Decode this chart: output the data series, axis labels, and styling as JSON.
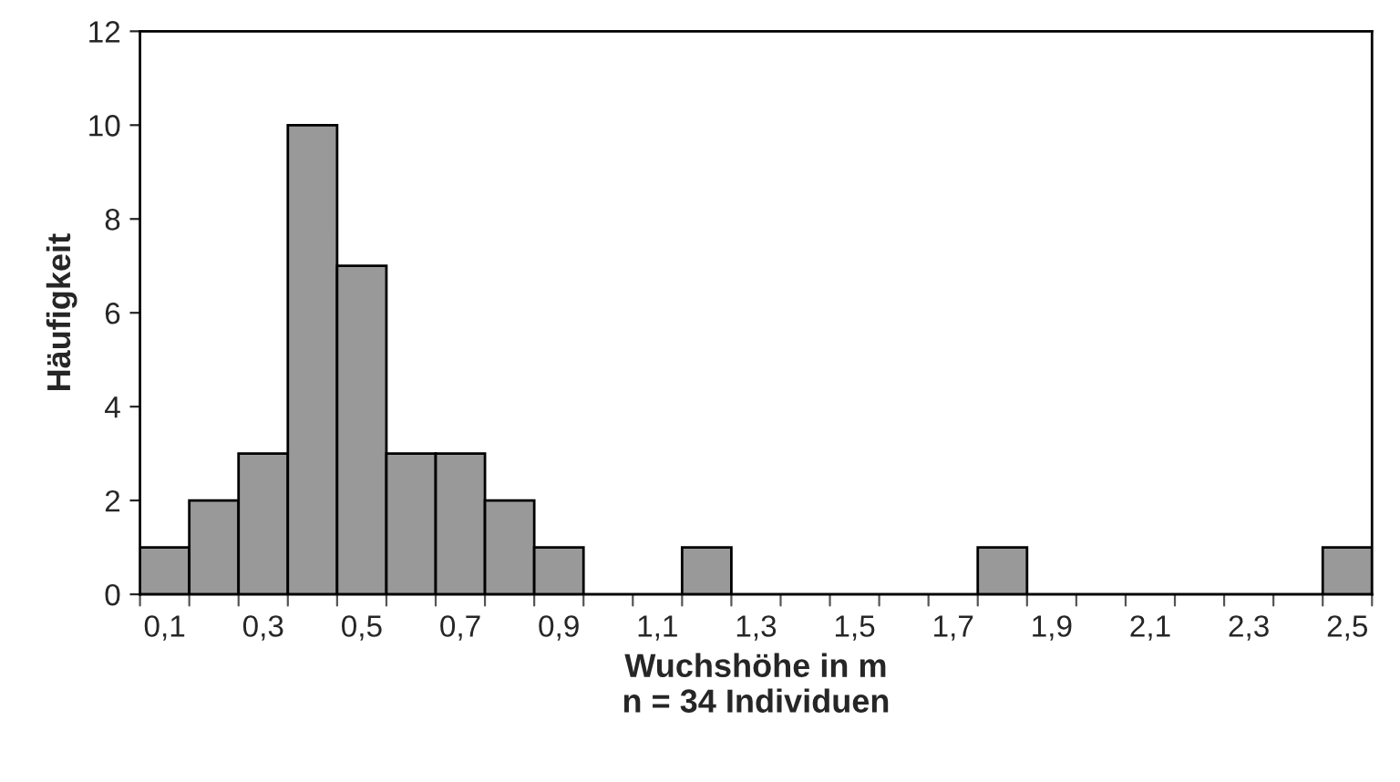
{
  "chart_data": {
    "type": "histogram",
    "xlabel": "Wuchshöhe in m\nn = 34 Individuen",
    "ylabel": "Häufigkeit",
    "bins": [
      0.05,
      0.15,
      0.25,
      0.35,
      0.45,
      0.55,
      0.65,
      0.75,
      0.85,
      0.95,
      1.05,
      1.15,
      1.25,
      1.35,
      1.45,
      1.55,
      1.65,
      1.75,
      1.85,
      1.95,
      2.05,
      2.15,
      2.25,
      2.35,
      2.45,
      2.55
    ],
    "values": [
      1,
      2,
      3,
      10,
      7,
      3,
      3,
      2,
      1,
      0,
      0,
      1,
      0,
      0,
      0,
      0,
      0,
      1,
      0,
      0,
      0,
      0,
      0,
      0,
      1
    ],
    "color": "#999999",
    "xlim": [
      0.05,
      2.55
    ],
    "xticks": [
      {
        "value": 0.1,
        "label": "0,1"
      },
      {
        "value": 0.3,
        "label": "0,3"
      },
      {
        "value": 0.5,
        "label": "0,5"
      },
      {
        "value": 0.7,
        "label": "0,7"
      },
      {
        "value": 0.9,
        "label": "0,9"
      },
      {
        "value": 1.1,
        "label": "1,1"
      },
      {
        "value": 1.3,
        "label": "1,3"
      },
      {
        "value": 1.5,
        "label": "1,5"
      },
      {
        "value": 1.7,
        "label": "1,7"
      },
      {
        "value": 1.9,
        "label": "1,9"
      },
      {
        "value": 2.1,
        "label": "2,1"
      },
      {
        "value": 2.3,
        "label": "2,3"
      },
      {
        "value": 2.5,
        "label": "2,5"
      }
    ],
    "ylim": [
      0,
      12
    ],
    "yticks": [
      0,
      2,
      4,
      6,
      8,
      10,
      12
    ],
    "grid": false
  }
}
